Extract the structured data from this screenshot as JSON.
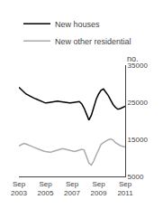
{
  "chart_data": {
    "type": "line",
    "ylabel": "no.",
    "categories": [
      "Sep\n2003",
      null,
      null,
      null,
      null,
      null,
      null,
      null,
      null,
      null,
      null,
      "Sep\n2005",
      null,
      null,
      null,
      null,
      null,
      null,
      null,
      null,
      null,
      null,
      "Sep\n2007",
      null,
      null,
      null,
      null,
      null,
      null,
      null,
      null,
      null,
      null,
      "Sep\n2009",
      null,
      null,
      null,
      null,
      null,
      null,
      null,
      null,
      null,
      null,
      "Sep\n2011"
    ],
    "series": [
      {
        "name": "New houses",
        "color": "#000000",
        "values": [
          29000,
          28500,
          27800,
          27200,
          26800,
          26500,
          26200,
          25900,
          25600,
          25300,
          25000,
          24800,
          24900,
          25000,
          25100,
          25200,
          25300,
          25200,
          25100,
          25000,
          24900,
          24800,
          24900,
          25000,
          25100,
          25200,
          24600,
          23400,
          21800,
          20200,
          21500,
          23500,
          25800,
          27200,
          28200,
          28600,
          27800,
          26800,
          25600,
          24400,
          23600,
          23100,
          23300,
          23600,
          23900
        ]
      },
      {
        "name": "New other residential",
        "color": "#aaaaaa",
        "values": [
          13200,
          13600,
          13900,
          13700,
          13500,
          13200,
          12900,
          12600,
          12400,
          12100,
          11900,
          11700,
          11600,
          11500,
          11700,
          11900,
          12100,
          12300,
          12500,
          12400,
          12200,
          12000,
          11800,
          11700,
          11900,
          12100,
          12300,
          12100,
          10200,
          8600,
          8100,
          9200,
          10800,
          12200,
          13600,
          14100,
          14600,
          14900,
          15100,
          14800,
          14100,
          13600,
          13300,
          13100,
          12900
        ]
      }
    ],
    "ylim": [
      5000,
      35000
    ],
    "yticks": [
      5000,
      15000,
      25000,
      35000
    ],
    "legend": "upper left",
    "grid": false
  }
}
